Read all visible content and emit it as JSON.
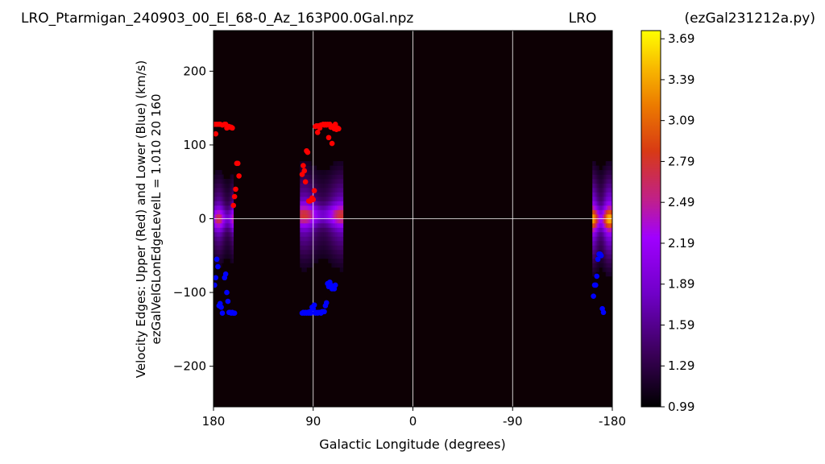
{
  "chart_data": {
    "type": "heatmap",
    "title": {
      "left": "LRO_Ptarmigan_240903_00_El_68-0_Az_163P00.0Gal.npz",
      "center": "LRO",
      "right": "(ezGal231212a.py)"
    },
    "xlabel": "Galactic Longitude (degrees)",
    "ylabel": "Velocity Edges: Upper (Red) and Lower (Blue) (km/s)",
    "ylabel2": "ezGalVelGLonEdgeLevelL = 1.010  20  160",
    "xlim": [
      180,
      -180
    ],
    "ylim": [
      -255,
      255
    ],
    "x_ticks": [
      {
        "value": 180,
        "label": "180"
      },
      {
        "value": 90,
        "label": "90"
      },
      {
        "value": 0,
        "label": "0"
      },
      {
        "value": -90,
        "label": "-90"
      },
      {
        "value": -180,
        "label": "-180"
      }
    ],
    "y_ticks": [
      {
        "value": 200,
        "label": "200"
      },
      {
        "value": 100,
        "label": "100"
      },
      {
        "value": 0,
        "label": "0"
      },
      {
        "value": -100,
        "label": "−100"
      },
      {
        "value": -200,
        "label": "−200"
      }
    ],
    "grid": true,
    "colormap": "gnuplot",
    "colorbar": {
      "min": 0.99,
      "max": 3.75,
      "ticks": [
        "0.99",
        "1.29",
        "1.59",
        "1.89",
        "2.19",
        "2.49",
        "2.79",
        "3.09",
        "3.39",
        "3.69"
      ]
    },
    "data_columns": [
      {
        "x_start": 180,
        "x_end": 162,
        "center_vel": 0,
        "half_width": 90,
        "peak": 2.7
      },
      {
        "x_start": 102,
        "x_end": 63,
        "center_vel": 5,
        "half_width": 100,
        "peak": 2.8
      },
      {
        "x_start": -162,
        "x_end": -180,
        "center_vel": 0,
        "half_width": 100,
        "peak": 3.5
      }
    ],
    "series": [
      {
        "name": "Upper (Red)",
        "color": "#ff0000",
        "points": [
          [
            179,
            128
          ],
          [
            178,
            115
          ],
          [
            177,
            128
          ],
          [
            175,
            128
          ],
          [
            174,
            128
          ],
          [
            172,
            127
          ],
          [
            170,
            128
          ],
          [
            169,
            128
          ],
          [
            168,
            123
          ],
          [
            167,
            125
          ],
          [
            166,
            125
          ],
          [
            165,
            124
          ],
          [
            164,
            124
          ],
          [
            163,
            123
          ],
          [
            162,
            18
          ],
          [
            161,
            30
          ],
          [
            160,
            40
          ],
          [
            159,
            75
          ],
          [
            158,
            75
          ],
          [
            157,
            58
          ],
          [
            100,
            60
          ],
          [
            99,
            72
          ],
          [
            98,
            65
          ],
          [
            97,
            50
          ],
          [
            96,
            92
          ],
          [
            95,
            90
          ],
          [
            94,
            24
          ],
          [
            93,
            24
          ],
          [
            92,
            25
          ],
          [
            91,
            28
          ],
          [
            90,
            26
          ],
          [
            89,
            38
          ],
          [
            88,
            125
          ],
          [
            87,
            126
          ],
          [
            86,
            117
          ],
          [
            85,
            126
          ],
          [
            84,
            123
          ],
          [
            83,
            127
          ],
          [
            81,
            128
          ],
          [
            80,
            127
          ],
          [
            79,
            128
          ],
          [
            78,
            127
          ],
          [
            77,
            128
          ],
          [
            76,
            110
          ],
          [
            75,
            128
          ],
          [
            74,
            124
          ],
          [
            73,
            102
          ],
          [
            72,
            125
          ],
          [
            71,
            122
          ],
          [
            70,
            128
          ],
          [
            69,
            121
          ],
          [
            68,
            123
          ],
          [
            67,
            122
          ]
        ]
      },
      {
        "name": "Lower (Blue)",
        "color": "#0000ff",
        "points": [
          [
            179,
            -90
          ],
          [
            178,
            -80
          ],
          [
            177,
            -55
          ],
          [
            176,
            -65
          ],
          [
            175,
            -118
          ],
          [
            174,
            -115
          ],
          [
            173,
            -120
          ],
          [
            172,
            -128
          ],
          [
            170,
            -80
          ],
          [
            169,
            -75
          ],
          [
            168,
            -100
          ],
          [
            167,
            -112
          ],
          [
            166,
            -127
          ],
          [
            165,
            -127
          ],
          [
            164,
            -128
          ],
          [
            163,
            -127
          ],
          [
            162,
            -128
          ],
          [
            161,
            -128
          ],
          [
            100,
            -128
          ],
          [
            99,
            -127
          ],
          [
            98,
            -128
          ],
          [
            97,
            -127
          ],
          [
            96,
            -128
          ],
          [
            95,
            -127
          ],
          [
            94,
            -128
          ],
          [
            93,
            -126
          ],
          [
            92,
            -128
          ],
          [
            91,
            -120
          ],
          [
            90,
            -122
          ],
          [
            89,
            -117
          ],
          [
            88,
            -128
          ],
          [
            87,
            -127
          ],
          [
            86,
            -128
          ],
          [
            85,
            -127
          ],
          [
            84,
            -127
          ],
          [
            83,
            -128
          ],
          [
            82,
            -126
          ],
          [
            81,
            -126
          ],
          [
            80,
            -126
          ],
          [
            79,
            -118
          ],
          [
            78,
            -114
          ],
          [
            77,
            -88
          ],
          [
            76,
            -92
          ],
          [
            75,
            -86
          ],
          [
            74,
            -90
          ],
          [
            73,
            -95
          ],
          [
            72,
            -92
          ],
          [
            71,
            -95
          ],
          [
            70,
            -90
          ],
          [
            -163,
            -105
          ],
          [
            -164,
            -90
          ],
          [
            -165,
            -90
          ],
          [
            -166,
            -78
          ],
          [
            -167,
            -55
          ],
          [
            -168,
            -48
          ],
          [
            -169,
            -48
          ],
          [
            -170,
            -50
          ],
          [
            -171,
            -122
          ],
          [
            -172,
            -127
          ]
        ]
      }
    ]
  }
}
